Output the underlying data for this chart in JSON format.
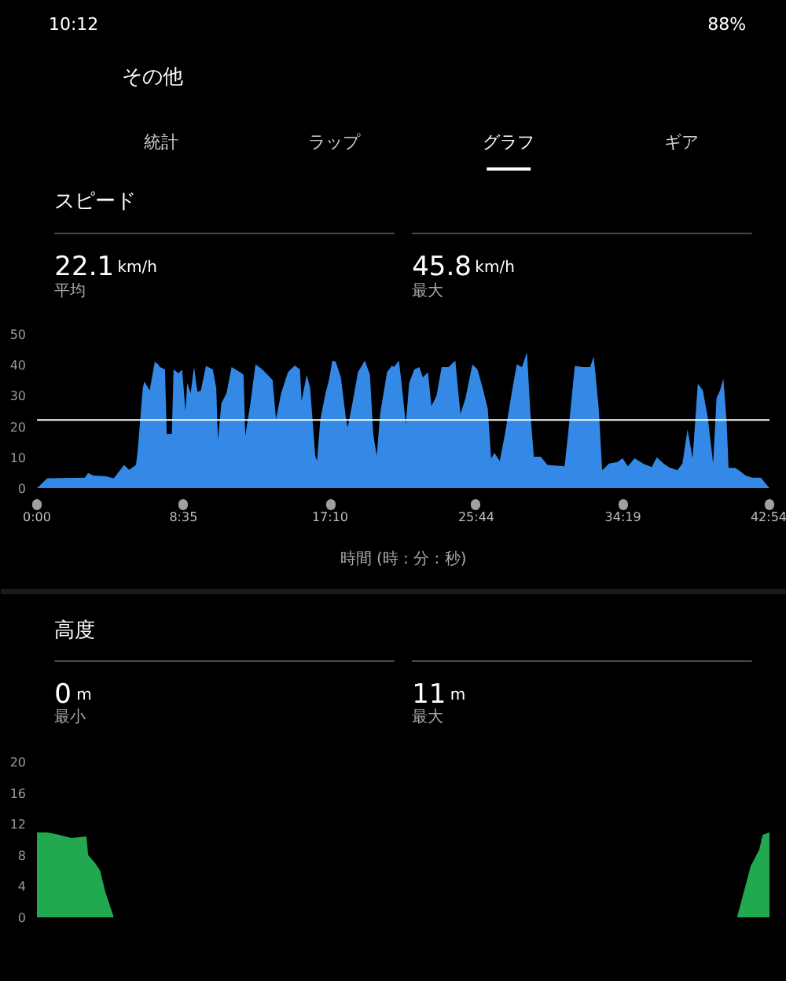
{
  "chart_data": [
    {
      "type": "area",
      "title": "スピード",
      "xlabel": "時間 (時 : 分 : 秒)",
      "annotations": [
        "10:12",
        "88%",
        "その他",
        "統計",
        "ラップ",
        "グラフ",
        "ギア",
        "22.1",
        "km/h",
        "平均",
        "45.8",
        "km/h",
        "最大"
      ],
      "x": [
        0,
        0.6,
        2.8,
        3.0,
        3.3,
        4.0,
        4.5,
        5.1,
        5.4,
        5.8,
        5.9,
        6.2,
        6.3,
        6.6,
        6.9,
        7.1,
        7.2,
        7.5,
        7.6,
        7.9,
        8.0,
        8.3,
        8.5,
        8.7,
        8.8,
        9.0,
        9.2,
        9.4,
        9.6,
        9.9,
        10.3,
        10.5,
        10.6,
        10.8,
        11.1,
        11.4,
        11.9,
        12.1,
        12.2,
        12.5,
        12.8,
        13.2,
        13.5,
        13.8,
        14.0,
        14.3,
        14.7,
        15.1,
        15.4,
        15.5,
        15.8,
        16.0,
        16.3,
        16.4,
        16.6,
        16.9,
        17.1,
        17.3,
        17.5,
        17.8,
        18.1,
        18.2,
        18.5,
        18.8,
        19.2,
        19.5,
        19.7,
        19.9,
        20.1,
        20.5,
        20.8,
        20.9,
        21.2,
        21.4,
        21.6,
        21.8,
        22.1,
        22.4,
        22.6,
        22.9,
        23.1,
        23.4,
        23.7,
        24.1,
        24.5,
        24.8,
        25.1,
        25.5,
        25.8,
        26.1,
        26.4,
        26.6,
        26.8,
        27.1,
        27.4,
        27.8,
        28.1,
        28.4,
        28.7,
        28.9,
        29.1,
        29.5,
        29.9,
        30.9,
        31.1,
        31.5,
        32.0,
        32.4,
        32.6,
        32.7,
        32.9,
        33.1,
        33.5,
        34.0,
        34.3,
        34.6,
        35.0,
        35.5,
        36.0,
        36.3,
        36.7,
        37.0,
        37.5,
        37.8,
        38.1,
        38.4,
        38.7,
        39.0,
        39.3,
        39.6,
        39.8,
        40.0,
        40.2,
        40.4,
        40.5,
        40.9,
        41.2,
        41.5,
        41.9,
        42.4,
        42.6,
        42.9
      ],
      "values": [
        0,
        3.2,
        3.4,
        4.9,
        4.1,
        3.9,
        3.2,
        7.5,
        5.9,
        7.5,
        12.2,
        32.5,
        34.6,
        31.7,
        41.0,
        40.2,
        39.3,
        38.6,
        17.6,
        17.6,
        38.5,
        37.3,
        38.5,
        24.9,
        34.2,
        30.8,
        39.3,
        31.2,
        31.7,
        39.7,
        38.5,
        32.5,
        15.6,
        27.5,
        30.8,
        39.3,
        37.6,
        36.8,
        16.9,
        27.5,
        40.2,
        38.5,
        36.8,
        35.1,
        22.4,
        30.8,
        37.6,
        39.8,
        38.5,
        28.3,
        36.8,
        32.5,
        10.5,
        8.8,
        22.4,
        30.8,
        35.1,
        41.4,
        41.0,
        35.9,
        22.4,
        19.8,
        28.3,
        37.6,
        41.4,
        36.8,
        17.3,
        10.5,
        24.1,
        37.6,
        39.8,
        39.3,
        41.4,
        31.7,
        20.7,
        34.2,
        38.5,
        39.3,
        35.9,
        37.6,
        26.6,
        30.0,
        39.3,
        39.3,
        41.4,
        24.1,
        29.2,
        40.2,
        38.5,
        32.5,
        25.8,
        9.7,
        11.4,
        8.8,
        17.3,
        30.8,
        40.2,
        39.3,
        44.1,
        24.1,
        10.2,
        10.2,
        7.5,
        7.1,
        17.3,
        39.7,
        39.3,
        39.3,
        42.7,
        37.6,
        25.8,
        5.8,
        8.0,
        8.5,
        9.7,
        7.1,
        9.7,
        8.0,
        6.8,
        10.0,
        8.0,
        6.8,
        5.8,
        8.0,
        19.0,
        9.7,
        33.9,
        31.7,
        22.4,
        8.0,
        29.2,
        31.7,
        35.6,
        20.7,
        6.6,
        6.6,
        5.4,
        4.1,
        3.4,
        3.4,
        2.0,
        0
      ],
      "color": "#3489e6",
      "xlim": [
        0,
        42.9
      ],
      "xticks": [
        {
          "value": 0,
          "label": "0:00"
        },
        {
          "value": 8.58,
          "label": "8:35"
        },
        {
          "value": 17.17,
          "label": "17:10"
        },
        {
          "value": 25.73,
          "label": "25:44"
        },
        {
          "value": 34.32,
          "label": "34:19"
        },
        {
          "value": 42.9,
          "label": "42:54"
        }
      ],
      "ylim": [
        0,
        50
      ],
      "yticks": [
        0,
        10,
        20,
        30,
        40,
        50
      ],
      "ref_lines": [
        {
          "axis": "y",
          "value": 22.1,
          "color": "#ffffff"
        }
      ]
    },
    {
      "type": "area",
      "title": "高度",
      "annotations": [
        "0",
        "m",
        "最小",
        "11",
        "m",
        "最大"
      ],
      "x": [
        0,
        0.6,
        1.1,
        2.0,
        2.5,
        2.9,
        3.0,
        3.4,
        3.7,
        4.0,
        4.5,
        41.0,
        41.8,
        42.3,
        42.5,
        42.9
      ],
      "values": [
        10.9,
        10.9,
        10.7,
        10.2,
        10.3,
        10.4,
        8.0,
        7.0,
        6.0,
        3.3,
        0,
        0,
        6.6,
        8.7,
        10.6,
        10.9
      ],
      "color": "#22a84e",
      "xlim": [
        0,
        42.9
      ],
      "ylim": [
        0,
        20
      ],
      "yticks": [
        0,
        4,
        8,
        12,
        16,
        20
      ],
      "tick_labels": "y"
    }
  ]
}
